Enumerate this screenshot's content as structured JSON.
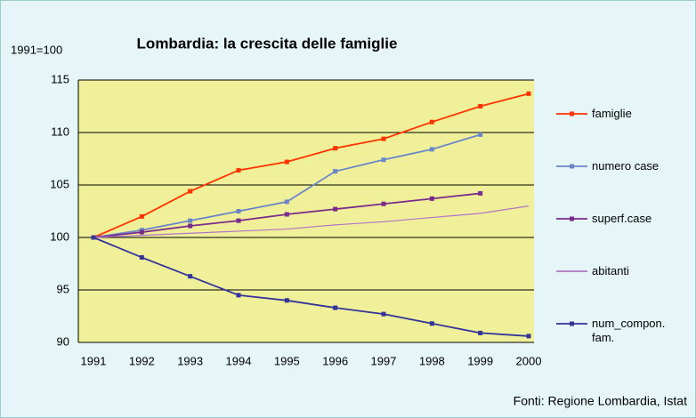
{
  "chart_data": {
    "type": "line",
    "title": "Lombardia: la crescita delle famiglie",
    "y_label": "1991=100",
    "source": "Fonti: Regione Lombardia, Istat",
    "categories": [
      "1991",
      "1992",
      "1993",
      "1994",
      "1995",
      "1996",
      "1997",
      "1998",
      "1999",
      "2000"
    ],
    "ylim": [
      90,
      115
    ],
    "yticks": [
      90,
      95,
      100,
      105,
      110,
      115
    ],
    "grid": true,
    "series": [
      {
        "name": "famiglie",
        "color": "#ff3300",
        "marker": true,
        "values": [
          100,
          102,
          104.4,
          106.4,
          107.2,
          108.5,
          109.4,
          111,
          112.5,
          113.7
        ]
      },
      {
        "name": "numero case",
        "color": "#6a86c8",
        "marker": true,
        "values": [
          100,
          100.7,
          101.6,
          102.5,
          103.4,
          106.3,
          107.4,
          108.4,
          109.8,
          null
        ]
      },
      {
        "name": "superf.case",
        "color": "#7a2a8a",
        "marker": true,
        "values": [
          100,
          100.5,
          101.1,
          101.6,
          102.2,
          102.7,
          103.2,
          103.7,
          104.2,
          null
        ]
      },
      {
        "name": "abitanti",
        "color": "#b274c4",
        "marker": false,
        "values": [
          100,
          100.2,
          100.4,
          100.6,
          100.8,
          101.2,
          101.5,
          101.9,
          102.3,
          103
        ]
      },
      {
        "name": "num_compon. fam.",
        "color": "#33339a",
        "marker": true,
        "values": [
          100,
          98.1,
          96.3,
          94.5,
          94,
          93.3,
          92.7,
          91.8,
          90.9,
          90.6
        ]
      }
    ]
  }
}
